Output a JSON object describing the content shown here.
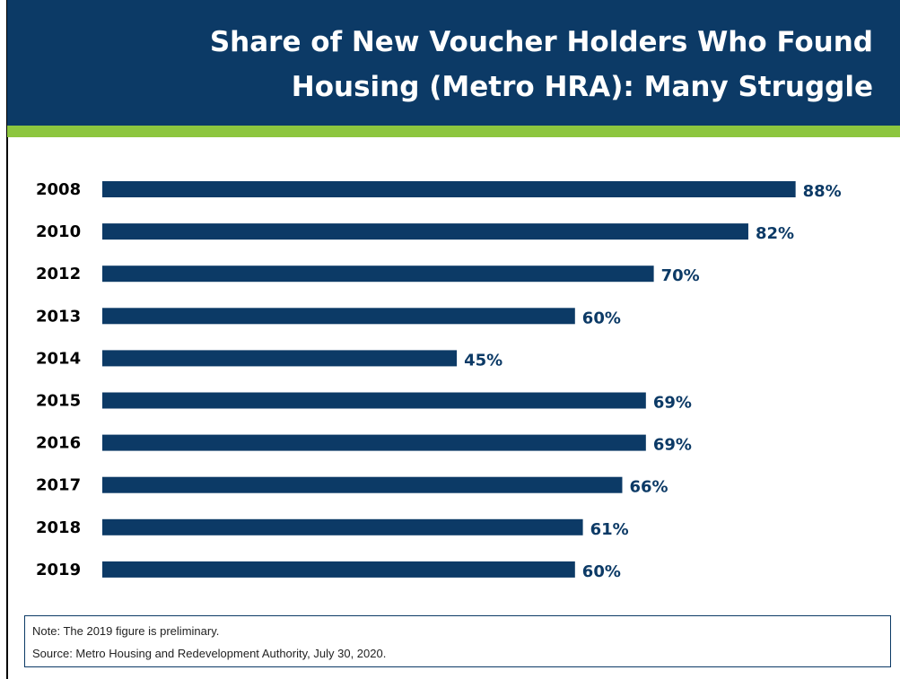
{
  "chart_data": {
    "type": "bar",
    "orientation": "horizontal",
    "title": "Share of New Voucher Holders Who Found Housing (Metro HRA):  Many Struggle",
    "categories": [
      "2008",
      "2010",
      "2012",
      "2013",
      "2014",
      "2015",
      "2016",
      "2017",
      "2018",
      "2019"
    ],
    "values": [
      88,
      82,
      70,
      60,
      45,
      69,
      69,
      66,
      61,
      60
    ],
    "value_labels": [
      "88%",
      "82%",
      "70%",
      "60%",
      "45%",
      "69%",
      "69%",
      "66%",
      "61%",
      "60%"
    ],
    "color": "#0c3a66",
    "xlim": [
      0,
      100
    ],
    "notes": [
      "Note: The 2019 figure is preliminary.",
      "Source: Metro Housing and Redevelopment Authority, July 30, 2020."
    ]
  }
}
